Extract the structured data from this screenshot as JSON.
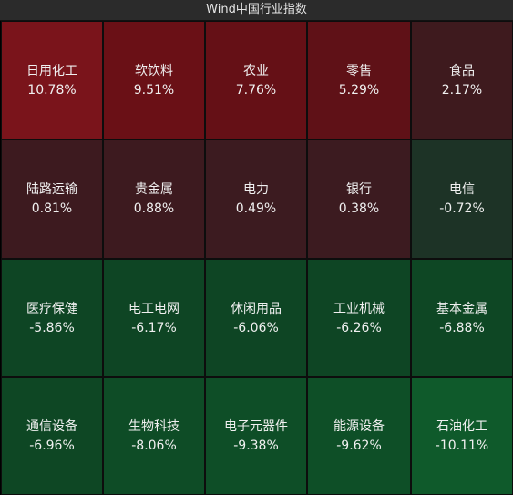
{
  "title": "Wind中国行业指数",
  "tiles": [
    {
      "name": "日用化工",
      "pct": "10.78%",
      "color": "#7a141b"
    },
    {
      "name": "软饮料",
      "pct": "9.51%",
      "color": "#6a1016"
    },
    {
      "name": "农业",
      "pct": "7.76%",
      "color": "#651016"
    },
    {
      "name": "零售",
      "pct": "5.29%",
      "color": "#5f1117"
    },
    {
      "name": "食品",
      "pct": "2.17%",
      "color": "#3e1a1e"
    },
    {
      "name": "陆路运输",
      "pct": "0.81%",
      "color": "#3d1a1f"
    },
    {
      "name": "贵金属",
      "pct": "0.88%",
      "color": "#3d1a1f"
    },
    {
      "name": "电力",
      "pct": "0.49%",
      "color": "#3c1b20"
    },
    {
      "name": "银行",
      "pct": "0.38%",
      "color": "#3c1b20"
    },
    {
      "name": "电信",
      "pct": "-0.72%",
      "color": "#1d3326"
    },
    {
      "name": "医疗保健",
      "pct": "-5.86%",
      "color": "#0e4524"
    },
    {
      "name": "电工电网",
      "pct": "-6.17%",
      "color": "#0e4524"
    },
    {
      "name": "休闲用品",
      "pct": "-6.06%",
      "color": "#0e4524"
    },
    {
      "name": "工业机械",
      "pct": "-6.26%",
      "color": "#0e4524"
    },
    {
      "name": "基本金属",
      "pct": "-6.88%",
      "color": "#0e4724"
    },
    {
      "name": "通信设备",
      "pct": "-6.96%",
      "color": "#0e4724"
    },
    {
      "name": "生物科技",
      "pct": "-8.06%",
      "color": "#0e4c26"
    },
    {
      "name": "电子元器件",
      "pct": "-9.38%",
      "color": "#0e4e27"
    },
    {
      "name": "能源设备",
      "pct": "-9.62%",
      "color": "#0e4f27"
    },
    {
      "name": "石油化工",
      "pct": "-10.11%",
      "color": "#0f5a2b"
    }
  ]
}
